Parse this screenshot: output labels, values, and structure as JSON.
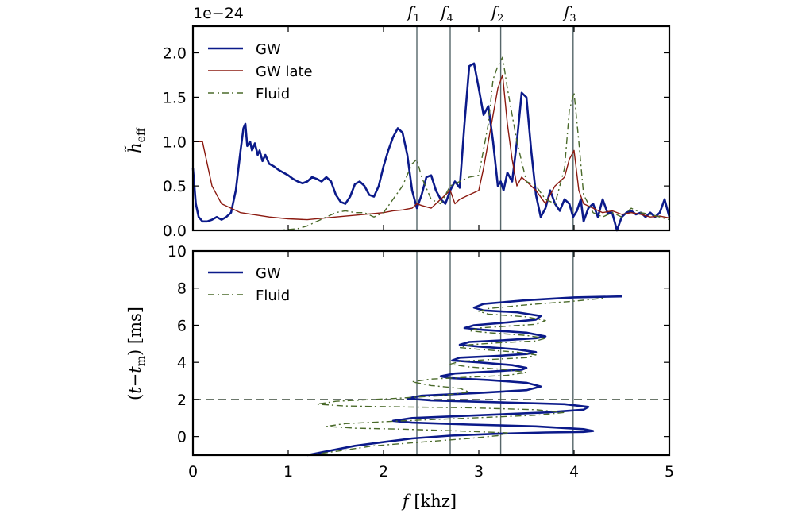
{
  "chart_data": [
    {
      "type": "line",
      "offset_label": "1e−24",
      "xlabel": "",
      "ylabel": "h̃_eff",
      "xlim": [
        0,
        5
      ],
      "ylim": [
        0,
        2.3
      ],
      "xticks": [
        "0",
        "1",
        "2",
        "3",
        "4",
        "5"
      ],
      "yticks": [
        "0.0",
        "0.5",
        "1.0",
        "1.5",
        "2.0"
      ],
      "ytick_values": [
        0,
        0.5,
        1.0,
        1.5,
        2.0
      ],
      "legend": "top-left",
      "vlines": [
        {
          "name": "f1",
          "label_main": "f",
          "label_sub": "1",
          "x": 2.35
        },
        {
          "name": "f4",
          "label_main": "f",
          "label_sub": "4",
          "x": 2.7
        },
        {
          "name": "f2",
          "label_main": "f",
          "label_sub": "2",
          "x": 3.23
        },
        {
          "name": "f3",
          "label_main": "f",
          "label_sub": "3",
          "x": 3.99
        }
      ],
      "series": [
        {
          "name": "GW",
          "color": "#0b1a8a",
          "style": "solid",
          "width": 2.6,
          "x": [
            0.0,
            0.03,
            0.06,
            0.1,
            0.15,
            0.2,
            0.25,
            0.3,
            0.35,
            0.4,
            0.45,
            0.5,
            0.53,
            0.55,
            0.57,
            0.6,
            0.62,
            0.65,
            0.68,
            0.7,
            0.73,
            0.76,
            0.8,
            0.85,
            0.9,
            0.95,
            1.0,
            1.05,
            1.1,
            1.15,
            1.2,
            1.25,
            1.3,
            1.35,
            1.4,
            1.45,
            1.5,
            1.55,
            1.6,
            1.65,
            1.7,
            1.75,
            1.8,
            1.85,
            1.9,
            1.95,
            2.0,
            2.05,
            2.1,
            2.15,
            2.2,
            2.25,
            2.3,
            2.35,
            2.4,
            2.45,
            2.5,
            2.55,
            2.6,
            2.65,
            2.7,
            2.75,
            2.8,
            2.85,
            2.9,
            2.95,
            3.0,
            3.05,
            3.1,
            3.15,
            3.2,
            3.23,
            3.26,
            3.3,
            3.35,
            3.4,
            3.45,
            3.5,
            3.55,
            3.6,
            3.65,
            3.7,
            3.75,
            3.8,
            3.85,
            3.9,
            3.95,
            3.99,
            4.03,
            4.07,
            4.1,
            4.15,
            4.2,
            4.25,
            4.3,
            4.35,
            4.4,
            4.45,
            4.5,
            4.55,
            4.6,
            4.65,
            4.7,
            4.75,
            4.8,
            4.85,
            4.9,
            4.95,
            5.0
          ],
          "y": [
            0.7,
            0.3,
            0.15,
            0.1,
            0.1,
            0.12,
            0.15,
            0.12,
            0.15,
            0.2,
            0.45,
            0.9,
            1.15,
            1.2,
            0.95,
            1.0,
            0.9,
            0.98,
            0.85,
            0.9,
            0.78,
            0.85,
            0.75,
            0.72,
            0.68,
            0.65,
            0.62,
            0.58,
            0.55,
            0.53,
            0.55,
            0.6,
            0.58,
            0.55,
            0.6,
            0.55,
            0.4,
            0.32,
            0.3,
            0.38,
            0.52,
            0.55,
            0.5,
            0.4,
            0.38,
            0.5,
            0.72,
            0.9,
            1.05,
            1.15,
            1.1,
            0.85,
            0.45,
            0.25,
            0.4,
            0.6,
            0.62,
            0.45,
            0.35,
            0.3,
            0.45,
            0.55,
            0.48,
            1.2,
            1.85,
            1.88,
            1.6,
            1.3,
            1.4,
            1.0,
            0.5,
            0.55,
            0.45,
            0.65,
            0.55,
            1.0,
            1.55,
            1.5,
            0.9,
            0.4,
            0.15,
            0.25,
            0.45,
            0.3,
            0.22,
            0.35,
            0.3,
            0.15,
            0.22,
            0.35,
            0.1,
            0.25,
            0.3,
            0.15,
            0.35,
            0.2,
            0.2,
            0.0,
            0.15,
            0.2,
            0.22,
            0.18,
            0.2,
            0.15,
            0.2,
            0.15,
            0.2,
            0.35,
            0.15
          ]
        },
        {
          "name": "GW late",
          "color": "#8b1a10",
          "style": "solid",
          "width": 1.4,
          "x": [
            0.0,
            0.1,
            0.2,
            0.3,
            0.5,
            0.8,
            1.0,
            1.2,
            1.5,
            1.8,
            2.0,
            2.1,
            2.2,
            2.3,
            2.35,
            2.4,
            2.5,
            2.6,
            2.7,
            2.75,
            2.8,
            2.9,
            3.0,
            3.05,
            3.1,
            3.2,
            3.25,
            3.3,
            3.35,
            3.4,
            3.45,
            3.5,
            3.6,
            3.7,
            3.8,
            3.9,
            3.95,
            4.0,
            4.05,
            4.1,
            4.2,
            4.3,
            4.4,
            4.5,
            4.6,
            4.7,
            4.8,
            4.9,
            5.0
          ],
          "y": [
            1.0,
            1.0,
            0.5,
            0.3,
            0.2,
            0.15,
            0.13,
            0.12,
            0.15,
            0.18,
            0.2,
            0.22,
            0.23,
            0.25,
            0.3,
            0.28,
            0.25,
            0.35,
            0.45,
            0.3,
            0.35,
            0.4,
            0.45,
            0.7,
            1.0,
            1.6,
            1.75,
            1.2,
            0.8,
            0.5,
            0.6,
            0.55,
            0.45,
            0.3,
            0.5,
            0.6,
            0.8,
            0.9,
            0.45,
            0.3,
            0.25,
            0.2,
            0.22,
            0.18,
            0.2,
            0.18,
            0.15,
            0.16,
            0.14
          ]
        },
        {
          "name": "Fluid",
          "color": "#4a6a2a",
          "style": "dashdot",
          "width": 1.4,
          "x": [
            0.7,
            0.9,
            1.1,
            1.2,
            1.3,
            1.4,
            1.5,
            1.6,
            1.7,
            1.8,
            1.9,
            2.0,
            2.1,
            2.2,
            2.3,
            2.35,
            2.4,
            2.5,
            2.6,
            2.7,
            2.8,
            2.9,
            3.0,
            3.1,
            3.15,
            3.2,
            3.25,
            3.3,
            3.4,
            3.5,
            3.6,
            3.7,
            3.8,
            3.9,
            3.95,
            4.0,
            4.05,
            4.1,
            4.2,
            4.3,
            4.4,
            4.5,
            4.6,
            4.7,
            4.8,
            4.9,
            5.0
          ],
          "y": [
            0.0,
            0.0,
            0.02,
            0.05,
            0.1,
            0.15,
            0.2,
            0.22,
            0.2,
            0.2,
            0.15,
            0.2,
            0.35,
            0.5,
            0.75,
            0.8,
            0.6,
            0.35,
            0.3,
            0.5,
            0.55,
            0.6,
            0.62,
            1.2,
            1.7,
            1.85,
            1.95,
            1.6,
            1.0,
            0.55,
            0.5,
            0.35,
            0.3,
            0.7,
            1.35,
            1.55,
            1.0,
            0.4,
            0.2,
            0.15,
            0.2,
            0.15,
            0.25,
            0.2,
            0.18,
            0.15,
            0.12
          ]
        }
      ]
    },
    {
      "type": "line",
      "xlabel": "f [khz]",
      "ylabel": "(t−t_m) [ms]",
      "xlim": [
        0,
        5
      ],
      "ylim": [
        -1,
        10
      ],
      "xticks": [
        "0",
        "1",
        "2",
        "3",
        "4",
        "5"
      ],
      "yticks": [
        "0",
        "2",
        "4",
        "6",
        "8",
        "10"
      ],
      "ytick_values": [
        0,
        2,
        4,
        6,
        8,
        10
      ],
      "hline": 2,
      "legend": "top-left",
      "series": [
        {
          "name": "GW",
          "color": "#0b1a8a",
          "style": "solid",
          "width": 2.6,
          "x": [
            1.2,
            1.4,
            1.7,
            2.0,
            2.3,
            2.7,
            3.2,
            3.7,
            4.1,
            4.2,
            4.1,
            3.6,
            2.9,
            2.3,
            2.1,
            2.3,
            3.0,
            3.7,
            4.1,
            4.15,
            3.9,
            3.2,
            2.5,
            2.25,
            2.4,
            3.0,
            3.5,
            3.65,
            3.5,
            3.1,
            2.7,
            2.6,
            2.75,
            3.1,
            3.45,
            3.5,
            3.35,
            3.0,
            2.72,
            2.8,
            3.2,
            3.5,
            3.6,
            3.4,
            3.0,
            2.8,
            2.9,
            3.3,
            3.6,
            3.7,
            3.5,
            3.05,
            2.85,
            2.95,
            3.3,
            3.6,
            3.65,
            3.4,
            3.05,
            2.95,
            3.05,
            3.5,
            4.0,
            4.5
          ],
          "y": [
            -1.0,
            -0.8,
            -0.5,
            -0.3,
            -0.1,
            0.05,
            0.15,
            0.22,
            0.25,
            0.3,
            0.4,
            0.55,
            0.65,
            0.75,
            0.85,
            1.0,
            1.15,
            1.3,
            1.45,
            1.6,
            1.75,
            1.85,
            1.95,
            2.05,
            2.2,
            2.35,
            2.5,
            2.7,
            2.9,
            3.05,
            3.15,
            3.25,
            3.4,
            3.5,
            3.6,
            3.7,
            3.85,
            4.0,
            4.1,
            4.25,
            4.35,
            4.45,
            4.55,
            4.7,
            4.85,
            4.95,
            5.1,
            5.2,
            5.3,
            5.4,
            5.6,
            5.75,
            5.85,
            6.0,
            6.15,
            6.3,
            6.5,
            6.7,
            6.8,
            6.95,
            7.15,
            7.35,
            7.5,
            7.55
          ]
        },
        {
          "name": "Fluid",
          "color": "#4a6a2a",
          "style": "dashdot",
          "width": 1.4,
          "x": [
            1.2,
            1.5,
            1.9,
            2.4,
            2.9,
            3.2,
            3.3,
            2.8,
            2.2,
            1.7,
            1.4,
            1.6,
            2.2,
            2.9,
            3.6,
            3.9,
            3.6,
            2.9,
            2.2,
            1.6,
            1.3,
            1.5,
            2.1,
            2.6,
            2.9,
            2.8,
            2.5,
            2.3,
            2.5,
            2.9,
            3.3,
            3.5,
            3.3,
            2.9,
            2.7,
            2.8,
            3.1,
            3.5,
            3.6,
            3.4,
            3.0,
            2.8,
            2.9,
            3.2,
            3.6,
            3.7,
            3.5,
            3.1,
            2.9,
            3.0,
            3.3,
            3.6,
            3.7,
            3.5,
            3.1,
            3.0,
            3.1,
            3.5,
            4.0,
            4.3
          ],
          "y": [
            -1.0,
            -0.8,
            -0.5,
            -0.3,
            -0.1,
            0.05,
            0.2,
            0.3,
            0.4,
            0.45,
            0.55,
            0.7,
            0.85,
            1.0,
            1.15,
            1.3,
            1.45,
            1.55,
            1.6,
            1.65,
            1.75,
            1.9,
            2.05,
            2.2,
            2.4,
            2.6,
            2.75,
            2.95,
            3.1,
            3.2,
            3.3,
            3.45,
            3.6,
            3.75,
            3.9,
            4.05,
            4.15,
            4.25,
            4.4,
            4.55,
            4.7,
            4.8,
            4.95,
            5.05,
            5.15,
            5.3,
            5.45,
            5.6,
            5.7,
            5.85,
            5.95,
            6.05,
            6.25,
            6.45,
            6.6,
            6.75,
            6.9,
            7.1,
            7.3,
            7.45
          ]
        }
      ]
    }
  ]
}
